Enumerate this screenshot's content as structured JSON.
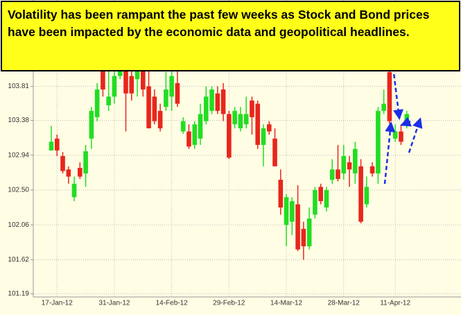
{
  "chart_data": {
    "type": "candlestick",
    "annotation": "Volatility has been rampant the past few weeks as Stock and Bond prices have been impacted by the economic data and geopolitical headlines.",
    "categories": [
      null,
      "17-Jan-12",
      null,
      null,
      null,
      null,
      null,
      null,
      null,
      null,
      null,
      "31-Jan-12",
      null,
      null,
      null,
      null,
      null,
      null,
      null,
      null,
      null,
      "14-Feb-12",
      null,
      null,
      null,
      null,
      null,
      null,
      null,
      null,
      null,
      "29-Feb-12",
      null,
      null,
      null,
      null,
      null,
      null,
      null,
      null,
      null,
      "14-Mar-12",
      null,
      null,
      null,
      null,
      null,
      null,
      null,
      null,
      null,
      "28-Mar-12",
      null,
      null,
      null,
      null,
      null,
      null,
      null,
      null,
      "11-Apr-12",
      null,
      null
    ],
    "open": [
      103.0,
      103.15,
      102.93,
      102.76,
      102.41,
      102.78,
      102.71,
      103.15,
      103.42,
      104.03,
      103.57,
      103.68,
      103.94,
      104.03,
      103.94,
      103.9,
      104.12,
      103.81,
      103.68,
      103.5,
      103.55,
      103.68,
      103.85,
      103.24,
      103.24,
      103.07,
      103.15,
      103.37,
      103.5,
      103.72,
      103.77,
      103.46,
      103.33,
      103.28,
      103.33,
      103.63,
      103.59,
      103.07,
      103.33,
      103.15,
      102.63,
      102.06,
      102.1,
      102.32,
      102.01,
      101.79,
      102.19,
      102.54,
      102.28,
      102.63,
      102.76,
      102.71,
      102.85,
      102.71,
      102.8,
      102.32,
      102.8,
      102.71,
      103.5,
      103.99,
      103.15,
      103.24,
      103.33
    ],
    "high": [
      103.31,
      103.2,
      102.98,
      102.8,
      102.67,
      102.85,
      103.07,
      103.55,
      103.85,
      104.07,
      104.03,
      104.12,
      104.12,
      104.07,
      104.03,
      104.12,
      104.12,
      104.03,
      103.77,
      103.59,
      103.99,
      104.03,
      104.03,
      103.42,
      103.33,
      103.37,
      103.59,
      103.81,
      103.81,
      103.81,
      103.85,
      103.5,
      103.55,
      103.55,
      103.68,
      103.68,
      103.63,
      103.33,
      103.37,
      103.28,
      102.76,
      102.45,
      102.41,
      102.56,
      102.1,
      102.28,
      102.54,
      102.58,
      102.54,
      102.89,
      103.07,
      103.07,
      102.93,
      103.11,
      102.89,
      102.67,
      102.85,
      103.55,
      103.77,
      104.0,
      103.33,
      103.33,
      103.5
    ],
    "low": [
      103.0,
      102.93,
      102.71,
      102.58,
      102.36,
      102.64,
      102.54,
      103.02,
      103.37,
      103.68,
      103.5,
      103.59,
      103.9,
      103.24,
      103.63,
      103.68,
      103.68,
      103.28,
      103.33,
      103.24,
      103.5,
      103.5,
      103.55,
      103.21,
      103.02,
      103.02,
      103.07,
      103.33,
      103.46,
      103.46,
      103.37,
      102.89,
      103.28,
      103.24,
      103.28,
      103.2,
      103.02,
      102.8,
      103.2,
      102.8,
      102.19,
      101.79,
      101.93,
      101.73,
      101.62,
      101.75,
      102.14,
      102.32,
      102.23,
      102.58,
      102.61,
      102.63,
      102.54,
      102.58,
      102.08,
      102.28,
      102.67,
      102.58,
      103.46,
      103.33,
      103.11,
      103.07,
      103.28
    ],
    "close": [
      103.11,
      103.0,
      102.74,
      102.67,
      102.58,
      102.67,
      102.99,
      103.5,
      103.77,
      103.77,
      103.68,
      103.94,
      104.03,
      103.72,
      103.72,
      104.07,
      103.77,
      103.28,
      103.37,
      103.28,
      103.77,
      103.94,
      103.59,
      103.37,
      103.05,
      103.33,
      103.46,
      103.68,
      103.77,
      103.5,
      103.46,
      102.91,
      103.5,
      103.46,
      103.46,
      103.42,
      103.07,
      103.28,
      103.24,
      102.8,
      102.28,
      102.41,
      102.36,
      101.75,
      101.79,
      102.14,
      102.5,
      102.36,
      102.5,
      102.76,
      102.64,
      102.93,
      102.76,
      103.02,
      102.1,
      102.54,
      102.71,
      103.5,
      103.59,
      103.37,
      103.24,
      103.11,
      103.46
    ],
    "up_color": "#22dd22",
    "down_color": "#e8261c",
    "ylim": [
      101.15,
      104.9
    ],
    "yticks": [
      101.19,
      101.62,
      102.06,
      {
        "value": 102.5,
        "label": "102.50"
      },
      102.94,
      103.38,
      103.81
    ],
    "grid": true
  }
}
